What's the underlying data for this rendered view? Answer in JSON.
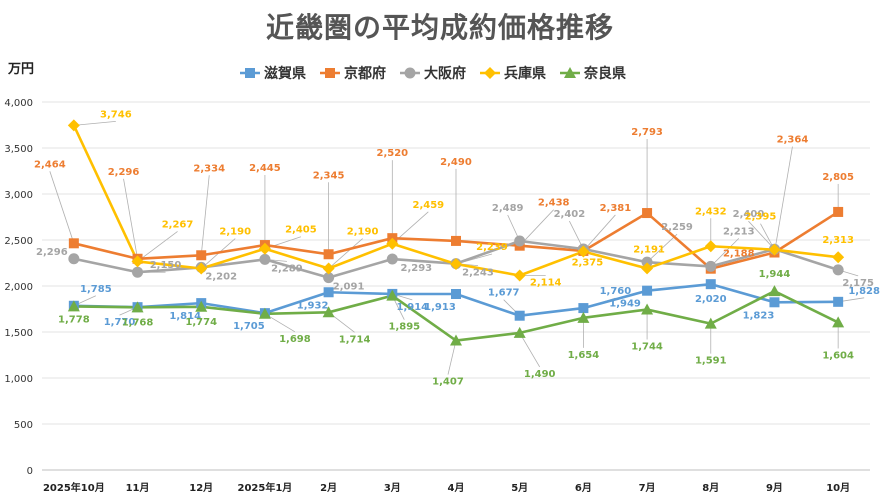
{
  "chart_data": {
    "type": "line",
    "title": "近畿圏の平均成約価格推移",
    "ylabel": "万円",
    "ylim": [
      0,
      4000
    ],
    "yticks": [
      "0",
      "500",
      "1,000",
      "1,500",
      "2,000",
      "2,500",
      "3,000",
      "3,500",
      "4,000"
    ],
    "ytick_values": [
      0,
      500,
      1000,
      1500,
      2000,
      2500,
      3000,
      3500,
      4000
    ],
    "categories": [
      "2025年10月",
      "11月",
      "12月",
      "2025年1月",
      "2月",
      "3月",
      "4月",
      "5月",
      "6月",
      "7月",
      "8月",
      "9月",
      "10月"
    ],
    "grid": true,
    "legend_position": "top",
    "series": [
      {
        "name": "滋賀県",
        "color": "#5B9BD5",
        "marker": "square",
        "values": [
          1785,
          1770,
          1814,
          1705,
          1932,
          1914,
          1913,
          1677,
          1760,
          1949,
          2020,
          1823,
          1828
        ],
        "labels": [
          "1,785",
          "1,770",
          "1,814",
          "1,705",
          "1,932",
          "1,914",
          "1,913",
          "1,677",
          "1,760",
          "1,949",
          "2,020",
          "1,823",
          "1,828"
        ]
      },
      {
        "name": "京都府",
        "color": "#ED7D31",
        "marker": "square",
        "values": [
          2464,
          2296,
          2334,
          2445,
          2345,
          2520,
          2490,
          2438,
          2381,
          2793,
          2188,
          2364,
          2805
        ],
        "labels": [
          "2,464",
          "2,296",
          "2,334",
          "2,445",
          "2,345",
          "2,520",
          "2,490",
          "2,438",
          "2,381",
          "2,793",
          "2,188",
          "2,364",
          "2,805"
        ]
      },
      {
        "name": "大阪府",
        "color": "#A5A5A5",
        "marker": "circle",
        "values": [
          2296,
          2150,
          2202,
          2289,
          2091,
          2293,
          2243,
          2489,
          2402,
          2259,
          2213,
          2400,
          2175
        ],
        "labels": [
          "2,296",
          "2,150",
          "2,202",
          "2,289",
          "2,091",
          "2,293",
          "2,243",
          "2,489",
          "2,402",
          "2,259",
          "2,213",
          "2,400",
          "2,175"
        ]
      },
      {
        "name": "兵庫県",
        "color": "#FFC000",
        "marker": "diamond",
        "values": [
          3746,
          2267,
          2190,
          2405,
          2190,
          2459,
          2239,
          2114,
          2375,
          2191,
          2432,
          2395,
          2313
        ],
        "labels": [
          "3,746",
          "2,267",
          "2,190",
          "2,405",
          "2,190",
          "2,459",
          "2,239",
          "2,114",
          "2,375",
          "2,191",
          "2,432",
          "2,395",
          "2,313"
        ]
      },
      {
        "name": "奈良県",
        "color": "#70AD47",
        "marker": "triangle",
        "values": [
          1778,
          1768,
          1774,
          1698,
          1714,
          1895,
          1407,
          1490,
          1654,
          1744,
          1591,
          1944,
          1604
        ],
        "labels": [
          "1,778",
          "1,768",
          "1,774",
          "1,698",
          "1,714",
          "1,895",
          "1,407",
          "1,490",
          "1,654",
          "1,744",
          "1,591",
          "1,944",
          "1,604"
        ]
      }
    ]
  }
}
